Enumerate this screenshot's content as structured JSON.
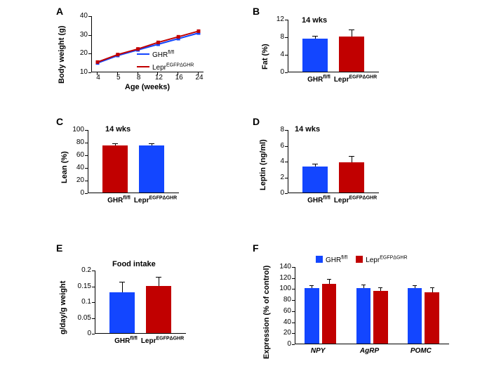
{
  "colors": {
    "blue": "#1346ff",
    "red": "#c10000"
  },
  "panels": {
    "A": {
      "label": "A",
      "type": "line",
      "ylabel": "Body weight (g)",
      "xlabel": "Age (weeks)",
      "ylim": [
        10,
        40
      ],
      "yticks": [
        10,
        20,
        30,
        40
      ],
      "xticks": [
        4,
        5,
        8,
        12,
        16,
        24
      ],
      "series": {
        "GHR": {
          "label_html": "GHR<sup>fl/fl</sup>",
          "color": "#1346ff",
          "x": [
            4,
            5,
            8,
            12,
            16,
            24
          ],
          "y": [
            15,
            19,
            22,
            25,
            28,
            31
          ]
        },
        "Lepr": {
          "label_html": "Lepr<sup>EGFPΔGHR</sup>",
          "color": "#c10000",
          "x": [
            4,
            5,
            8,
            12,
            16,
            24
          ],
          "y": [
            15.5,
            19.5,
            22.5,
            26,
            29,
            32
          ]
        }
      }
    },
    "B": {
      "label": "B",
      "type": "bar",
      "title": "14 wks",
      "ylabel": "Fat (%)",
      "ylim": [
        0,
        12
      ],
      "yticks": [
        0,
        4,
        8,
        12
      ],
      "bars": [
        {
          "label_html": "GHR<sup>fl/fl</sup>",
          "value": 7.5,
          "err": 0.5,
          "color": "#1346ff"
        },
        {
          "label_html": "Lepr<sup>EGFPΔGHR</sup>",
          "value": 8.0,
          "err": 1.5,
          "color": "#c10000"
        }
      ]
    },
    "C": {
      "label": "C",
      "type": "bar",
      "title": "14 wks",
      "ylabel": "Lean (%)",
      "ylim": [
        0,
        100
      ],
      "yticks": [
        0,
        20,
        40,
        60,
        80,
        100
      ],
      "bars": [
        {
          "label_html": "GHR<sup>fl/fl</sup>",
          "value": 75,
          "err": 2,
          "color": "#c10000"
        },
        {
          "label_html": "Lepr<sup>EGFPΔGHR</sup>",
          "value": 75,
          "err": 2,
          "color": "#1346ff"
        }
      ]
    },
    "D": {
      "label": "D",
      "type": "bar",
      "title": "14 wks",
      "ylabel": "Leptin (ng/ml)",
      "ylim": [
        0,
        8
      ],
      "yticks": [
        0,
        2,
        4,
        6,
        8
      ],
      "bars": [
        {
          "label_html": "GHR<sup>fl/fl</sup>",
          "value": 3.3,
          "err": 0.3,
          "color": "#1346ff"
        },
        {
          "label_html": "Lepr<sup>EGFPΔGHR</sup>",
          "value": 3.8,
          "err": 0.7,
          "color": "#c10000"
        }
      ]
    },
    "E": {
      "label": "E",
      "type": "bar",
      "title": "Food intake",
      "ylabel": "g/day/g weight",
      "ylim": [
        0,
        0.2
      ],
      "yticks": [
        0,
        0.05,
        0.1,
        0.15,
        0.2
      ],
      "bars": [
        {
          "label_html": "GHR<sup>fl/fl</sup>",
          "value": 0.13,
          "err": 0.03,
          "color": "#1346ff"
        },
        {
          "label_html": "Lepr<sup>EGFPΔGHR</sup>",
          "value": 0.15,
          "err": 0.025,
          "color": "#c10000"
        }
      ]
    },
    "F": {
      "label": "F",
      "type": "grouped-bar",
      "ylabel": "Expression (% of control)",
      "ylim": [
        0,
        140
      ],
      "yticks": [
        0,
        20,
        40,
        60,
        80,
        100,
        120,
        140
      ],
      "groups": [
        "NPY",
        "AgRP",
        "POMC"
      ],
      "legend": [
        {
          "label_html": "GHR<sup>fl/fl</sup>",
          "color": "#1346ff"
        },
        {
          "label_html": "Lepr<sup>EGFPΔGHR</sup>",
          "color": "#c10000"
        }
      ],
      "series": {
        "GHR": {
          "color": "#1346ff",
          "values": [
            100,
            100,
            100
          ],
          "err": [
            5,
            6,
            5
          ]
        },
        "Lepr": {
          "color": "#c10000",
          "values": [
            108,
            95,
            93
          ],
          "err": [
            8,
            5,
            8
          ]
        }
      }
    }
  }
}
